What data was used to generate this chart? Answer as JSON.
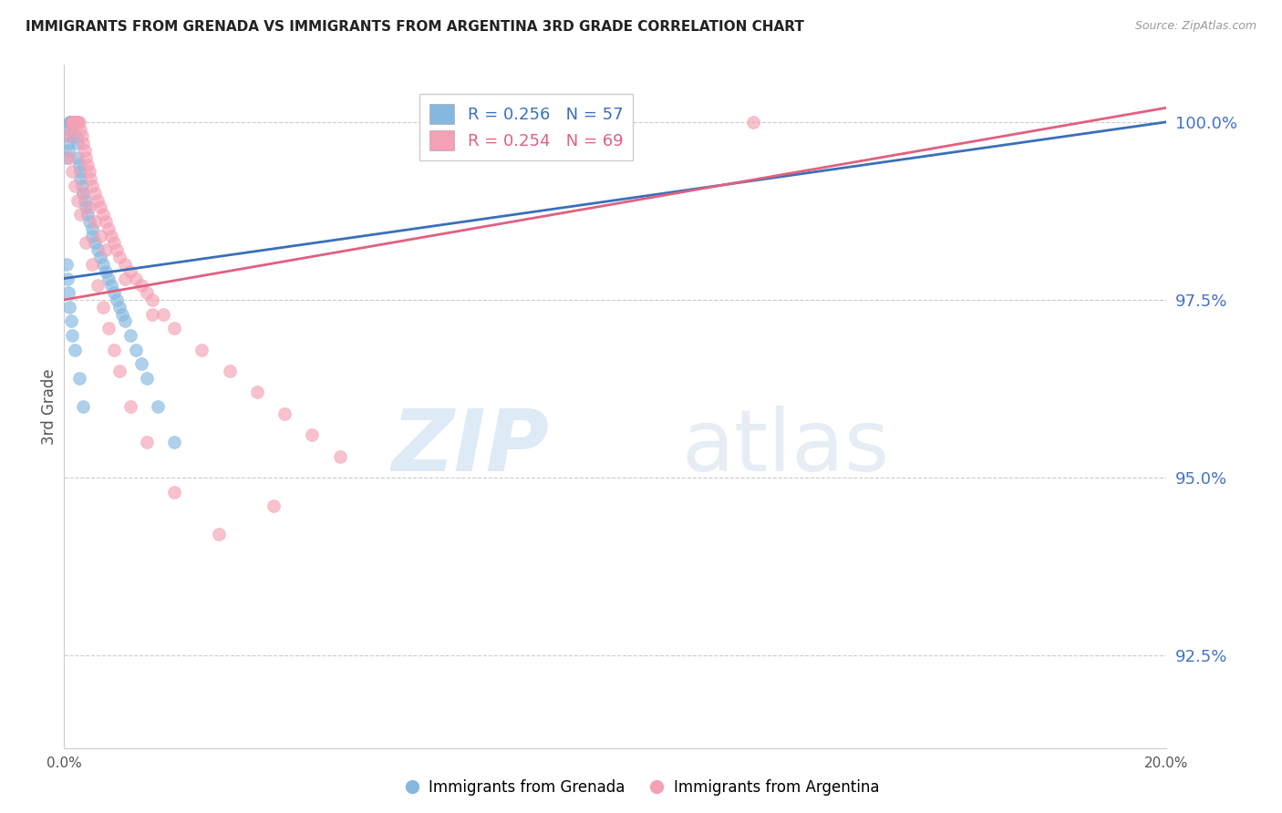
{
  "title": "IMMIGRANTS FROM GRENADA VS IMMIGRANTS FROM ARGENTINA 3RD GRADE CORRELATION CHART",
  "source": "Source: ZipAtlas.com",
  "ylabel": "3rd Grade",
  "yticks": [
    92.5,
    95.0,
    97.5,
    100.0
  ],
  "ytick_labels": [
    "92.5%",
    "95.0%",
    "97.5%",
    "100.0%"
  ],
  "xmin": 0.0,
  "xmax": 20.0,
  "ymin": 91.2,
  "ymax": 100.8,
  "legend_grenada": "R = 0.256   N = 57",
  "legend_argentina": "R = 0.254   N = 69",
  "color_grenada": "#85b8e0",
  "color_argentina": "#f4a0b5",
  "color_line_grenada": "#3a6fba",
  "color_line_argentina": "#e06080",
  "color_ytick_label": "#4472c4",
  "color_title": "#222222",
  "grenada_x": [
    0.05,
    0.07,
    0.08,
    0.09,
    0.1,
    0.1,
    0.11,
    0.12,
    0.13,
    0.15,
    0.15,
    0.16,
    0.17,
    0.18,
    0.2,
    0.2,
    0.22,
    0.25,
    0.25,
    0.28,
    0.3,
    0.3,
    0.32,
    0.35,
    0.38,
    0.4,
    0.42,
    0.45,
    0.5,
    0.5,
    0.55,
    0.6,
    0.65,
    0.7,
    0.75,
    0.8,
    0.85,
    0.9,
    0.95,
    1.0,
    1.05,
    1.1,
    1.2,
    1.3,
    1.4,
    1.5,
    1.7,
    2.0,
    0.05,
    0.06,
    0.08,
    0.1,
    0.12,
    0.15,
    0.2,
    0.28,
    0.35
  ],
  "grenada_y": [
    99.5,
    99.6,
    99.7,
    99.8,
    99.9,
    100.0,
    100.0,
    100.0,
    100.0,
    100.0,
    100.0,
    100.0,
    100.0,
    100.0,
    100.0,
    100.0,
    99.8,
    99.7,
    99.5,
    99.4,
    99.3,
    99.2,
    99.1,
    99.0,
    98.9,
    98.8,
    98.7,
    98.6,
    98.5,
    98.4,
    98.3,
    98.2,
    98.1,
    98.0,
    97.9,
    97.8,
    97.7,
    97.6,
    97.5,
    97.4,
    97.3,
    97.2,
    97.0,
    96.8,
    96.6,
    96.4,
    96.0,
    95.5,
    98.0,
    97.8,
    97.6,
    97.4,
    97.2,
    97.0,
    96.8,
    96.4,
    96.0
  ],
  "argentina_x": [
    0.1,
    0.12,
    0.14,
    0.15,
    0.16,
    0.18,
    0.2,
    0.22,
    0.24,
    0.25,
    0.28,
    0.3,
    0.32,
    0.35,
    0.38,
    0.4,
    0.42,
    0.45,
    0.48,
    0.5,
    0.55,
    0.6,
    0.65,
    0.7,
    0.75,
    0.8,
    0.85,
    0.9,
    0.95,
    1.0,
    1.1,
    1.2,
    1.3,
    1.4,
    1.5,
    1.6,
    1.8,
    2.0,
    2.5,
    3.0,
    3.5,
    4.0,
    4.5,
    5.0,
    0.1,
    0.15,
    0.2,
    0.25,
    0.3,
    0.4,
    0.5,
    0.6,
    0.7,
    0.8,
    0.9,
    1.0,
    1.2,
    1.5,
    2.0,
    2.8,
    3.8,
    0.35,
    0.45,
    0.55,
    0.65,
    0.75,
    1.1,
    1.6,
    12.5
  ],
  "argentina_y": [
    99.8,
    99.9,
    100.0,
    100.0,
    100.0,
    100.0,
    100.0,
    100.0,
    100.0,
    100.0,
    100.0,
    99.9,
    99.8,
    99.7,
    99.6,
    99.5,
    99.4,
    99.3,
    99.2,
    99.1,
    99.0,
    98.9,
    98.8,
    98.7,
    98.6,
    98.5,
    98.4,
    98.3,
    98.2,
    98.1,
    98.0,
    97.9,
    97.8,
    97.7,
    97.6,
    97.5,
    97.3,
    97.1,
    96.8,
    96.5,
    96.2,
    95.9,
    95.6,
    95.3,
    99.5,
    99.3,
    99.1,
    98.9,
    98.7,
    98.3,
    98.0,
    97.7,
    97.4,
    97.1,
    96.8,
    96.5,
    96.0,
    95.5,
    94.8,
    94.2,
    94.6,
    99.0,
    98.8,
    98.6,
    98.4,
    98.2,
    97.8,
    97.3,
    100.0
  ],
  "trendline_grenada_x0": 0.0,
  "trendline_grenada_x1": 20.0,
  "trendline_grenada_y0": 97.8,
  "trendline_grenada_y1": 100.0,
  "trendline_argentina_x0": 0.0,
  "trendline_argentina_x1": 20.0,
  "trendline_argentina_y0": 97.5,
  "trendline_argentina_y1": 100.2
}
